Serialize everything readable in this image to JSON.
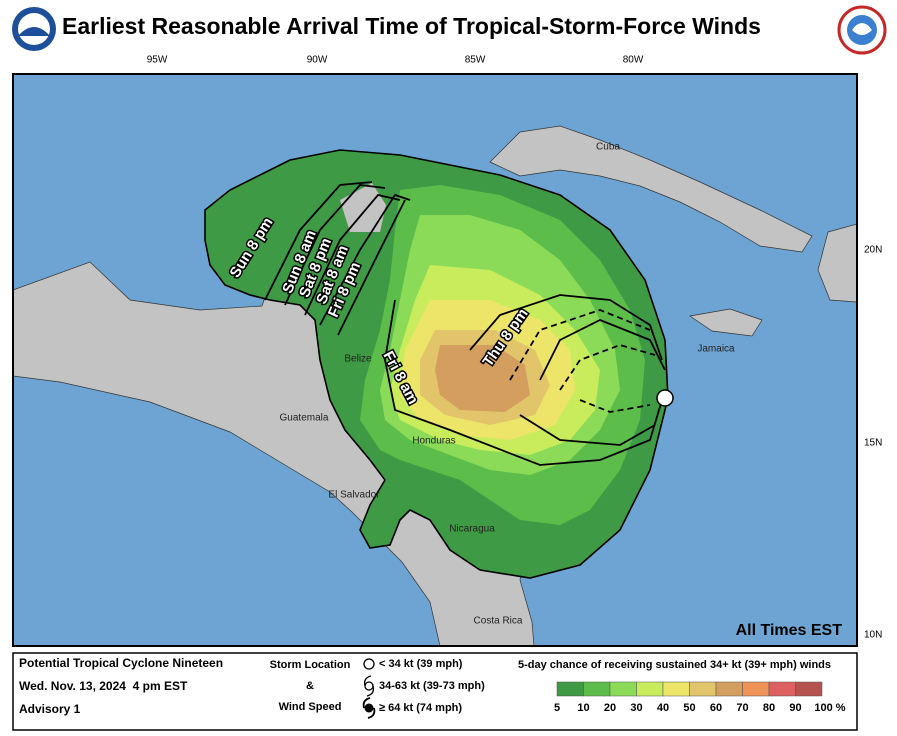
{
  "header": {
    "title": "Earliest Reasonable Arrival Time of Tropical-Storm-Force Winds"
  },
  "map": {
    "longitude_labels": [
      "95W",
      "90W",
      "85W",
      "80W"
    ],
    "latitude_labels": [
      "20N",
      "15N",
      "10N"
    ],
    "places": [
      "Cuba",
      "Jamaica",
      "Belize",
      "Guatemala",
      "Honduras",
      "El Salvador",
      "Nicaragua",
      "Costa Rica"
    ],
    "contour_labels": [
      "Sun 8 pm",
      "Sun 8 am",
      "Sat 8 pm",
      "Sat 8 am",
      "Fri 8 pm",
      "Fri 8 am",
      "Thu 8 pm"
    ],
    "time_zone_note": "All Times EST"
  },
  "legend": {
    "storm_name": "Potential Tropical Cyclone Nineteen",
    "issued": "Wed. Nov. 13, 2024  4 pm EST",
    "advisory": "Advisory 1",
    "storm_location": "Storm Location",
    "and": "&",
    "wind_speed": "Wind Speed",
    "wind_classes": [
      "< 34 kt (39 mph)",
      "34-63 kt (39-73 mph)",
      "≥ 64 kt (74 mph)"
    ],
    "scale_title": "5-day chance of receiving sustained 34+ kt (39+ mph) winds",
    "scale_labels": [
      "5",
      "10",
      "20",
      "30",
      "40",
      "50",
      "60",
      "70",
      "80",
      "90",
      "100 %"
    ],
    "scale_colors": [
      "#3e9a44",
      "#5dbd4b",
      "#8bdb58",
      "#c8ec5c",
      "#ede56a",
      "#e2c46a",
      "#d49e5e",
      "#ee9258",
      "#dd5f5f",
      "#b5524f",
      "#b660c0"
    ]
  }
}
